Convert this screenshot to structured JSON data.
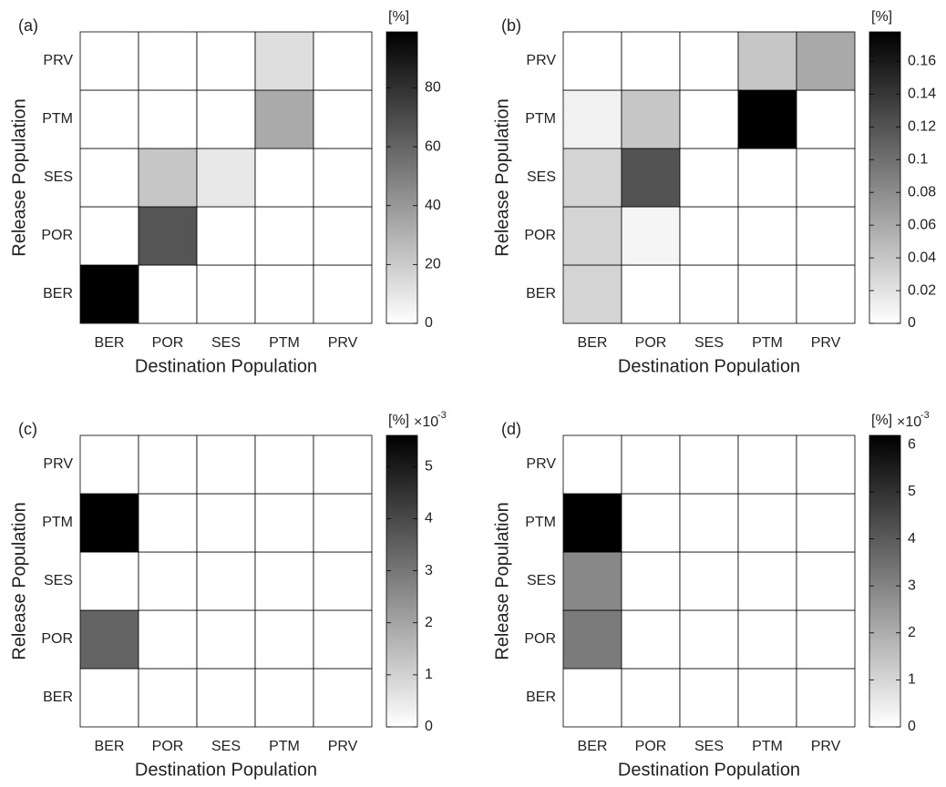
{
  "chart_data": [
    {
      "type": "heatmap",
      "panel_label": "(a)",
      "x_label": "Destination Population",
      "y_label": "Release Population",
      "x_categories": [
        "BER",
        "POR",
        "SES",
        "PTM",
        "PRV"
      ],
      "y_categories": [
        "BER",
        "POR",
        "SES",
        "PTM",
        "PRV"
      ],
      "values": [
        [
          99,
          0,
          0,
          0,
          0
        ],
        [
          0,
          66,
          0,
          0,
          0
        ],
        [
          0,
          22,
          9,
          0,
          0
        ],
        [
          0,
          0,
          0,
          33,
          0
        ],
        [
          0,
          0,
          0,
          13,
          0
        ]
      ],
      "colormap": "white-to-black",
      "colorbar_label": "[%]",
      "clim": [
        0,
        99
      ],
      "cticks": [
        0,
        20,
        40,
        60,
        80
      ]
    },
    {
      "type": "heatmap",
      "panel_label": "(b)",
      "x_label": "Destination Population",
      "y_label": "Release Population",
      "x_categories": [
        "BER",
        "POR",
        "SES",
        "PTM",
        "PRV"
      ],
      "y_categories": [
        "BER",
        "POR",
        "SES",
        "PTM",
        "PRV"
      ],
      "values": [
        [
          0.03,
          0,
          0,
          0,
          0
        ],
        [
          0.03,
          0.007,
          0,
          0,
          0
        ],
        [
          0.03,
          0.12,
          0,
          0,
          0
        ],
        [
          0.01,
          0.04,
          0,
          0.178,
          0
        ],
        [
          0,
          0,
          0,
          0.04,
          0.06
        ]
      ],
      "colormap": "white-to-black",
      "colorbar_label": "[%]",
      "clim": [
        0,
        0.178
      ],
      "cticks": [
        0,
        0.02,
        0.04,
        0.06,
        0.08,
        0.1,
        0.12,
        0.14,
        0.16
      ]
    },
    {
      "type": "heatmap",
      "panel_label": "(c)",
      "x_label": "Destination Population",
      "y_label": "Release Population",
      "x_categories": [
        "BER",
        "POR",
        "SES",
        "PTM",
        "PRV"
      ],
      "y_categories": [
        "BER",
        "POR",
        "SES",
        "PTM",
        "PRV"
      ],
      "values": [
        [
          0,
          0,
          0,
          0,
          0
        ],
        [
          3.4,
          0,
          0,
          0,
          0
        ],
        [
          0,
          0,
          0,
          0,
          0
        ],
        [
          5.6,
          0,
          0,
          0,
          0
        ],
        [
          0,
          0,
          0,
          0,
          0
        ]
      ],
      "colormap": "white-to-black",
      "colorbar_label": "[%]",
      "colorbar_multiplier": {
        "base": "×10",
        "exponent": "-3"
      },
      "clim": [
        0,
        5.6
      ],
      "cticks": [
        0,
        1,
        2,
        3,
        4,
        5
      ]
    },
    {
      "type": "heatmap",
      "panel_label": "(d)",
      "x_label": "Destination Population",
      "y_label": "Release Population",
      "x_categories": [
        "BER",
        "POR",
        "SES",
        "PTM",
        "PRV"
      ],
      "y_categories": [
        "BER",
        "POR",
        "SES",
        "PTM",
        "PRV"
      ],
      "values": [
        [
          0,
          0,
          0,
          0,
          0
        ],
        [
          3.2,
          0,
          0,
          0,
          0
        ],
        [
          2.9,
          0,
          0,
          0,
          0
        ],
        [
          6.2,
          0,
          0,
          0,
          0
        ],
        [
          0,
          0,
          0,
          0,
          0
        ]
      ],
      "colormap": "white-to-black",
      "colorbar_label": "[%]",
      "colorbar_multiplier": {
        "base": "×10",
        "exponent": "-3"
      },
      "clim": [
        0,
        6.2
      ],
      "cticks": [
        0,
        1,
        2,
        3,
        4,
        5,
        6
      ]
    }
  ]
}
